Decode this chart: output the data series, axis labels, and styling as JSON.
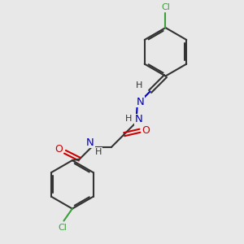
{
  "bg_color": "#e8e8e8",
  "bond_color": "#333333",
  "n_color": "#0000cc",
  "o_color": "#cc0000",
  "cl_color": "#3d9e3d",
  "lw": 1.5,
  "fig_w": 3.0,
  "fig_h": 3.0,
  "dpi": 100,
  "xlim": [
    0,
    10
  ],
  "ylim": [
    0,
    10
  ]
}
